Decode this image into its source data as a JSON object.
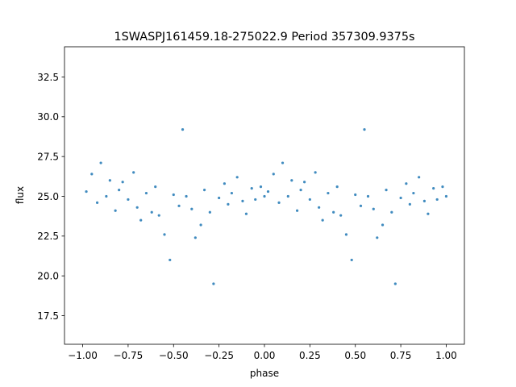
{
  "chart_data": {
    "type": "scatter",
    "title": "1SWASPJ161459.18-275022.9 Period 357309.9375s",
    "xlabel": "phase",
    "ylabel": "flux",
    "xlim": [
      -1.1,
      1.1
    ],
    "ylim": [
      15.7,
      34.4
    ],
    "xticks": [
      -1.0,
      -0.75,
      -0.5,
      -0.25,
      0.0,
      0.25,
      0.5,
      0.75,
      1.0
    ],
    "xtick_labels": [
      "−1.00",
      "−0.75",
      "−0.50",
      "−0.25",
      "0.00",
      "0.25",
      "0.50",
      "0.75",
      "1.00"
    ],
    "yticks": [
      17.5,
      20.0,
      22.5,
      25.0,
      27.5,
      30.0,
      32.5
    ],
    "ytick_labels": [
      "17.5",
      "20.0",
      "22.5",
      "25.0",
      "27.5",
      "30.0",
      "32.5"
    ],
    "grid": false,
    "legend": "none",
    "marker_color": "#1f77b4",
    "phase_folded": true,
    "series": [
      {
        "points": [
          [
            -0.98,
            25.3
          ],
          [
            -0.95,
            26.4
          ],
          [
            -0.92,
            24.6
          ],
          [
            -0.9,
            27.1
          ],
          [
            -0.87,
            25.0
          ],
          [
            -0.85,
            26.0
          ],
          [
            -0.82,
            24.1
          ],
          [
            -0.8,
            25.4
          ],
          [
            -0.78,
            25.9
          ],
          [
            -0.75,
            24.8
          ],
          [
            -0.72,
            26.5
          ],
          [
            -0.7,
            24.3
          ],
          [
            -0.68,
            23.5
          ],
          [
            -0.65,
            25.2
          ],
          [
            -0.62,
            24.0
          ],
          [
            -0.6,
            25.6
          ],
          [
            -0.58,
            23.8
          ],
          [
            -0.55,
            22.6
          ],
          [
            -0.52,
            21.0
          ],
          [
            -0.5,
            25.1
          ],
          [
            -0.47,
            24.4
          ],
          [
            -0.45,
            29.2
          ],
          [
            -0.43,
            25.0
          ],
          [
            -0.4,
            24.2
          ],
          [
            -0.38,
            22.4
          ],
          [
            -0.35,
            23.2
          ],
          [
            -0.33,
            25.4
          ],
          [
            -0.3,
            24.0
          ],
          [
            -0.28,
            19.5
          ],
          [
            -0.25,
            24.9
          ],
          [
            -0.22,
            25.8
          ],
          [
            -0.2,
            24.5
          ],
          [
            -0.18,
            25.2
          ],
          [
            -0.15,
            26.2
          ],
          [
            -0.12,
            24.7
          ],
          [
            -0.1,
            23.9
          ],
          [
            -0.07,
            25.5
          ],
          [
            -0.05,
            24.8
          ],
          [
            -0.02,
            25.6
          ],
          [
            0.0,
            25.0
          ],
          [
            0.02,
            25.3
          ],
          [
            0.05,
            26.4
          ],
          [
            0.08,
            24.6
          ],
          [
            0.1,
            27.1
          ],
          [
            0.13,
            25.0
          ],
          [
            0.15,
            26.0
          ],
          [
            0.18,
            24.1
          ],
          [
            0.2,
            25.4
          ],
          [
            0.22,
            25.9
          ],
          [
            0.25,
            24.8
          ],
          [
            0.28,
            26.5
          ],
          [
            0.3,
            24.3
          ],
          [
            0.32,
            23.5
          ],
          [
            0.35,
            25.2
          ],
          [
            0.38,
            24.0
          ],
          [
            0.4,
            25.6
          ],
          [
            0.42,
            23.8
          ],
          [
            0.45,
            22.6
          ],
          [
            0.48,
            21.0
          ],
          [
            0.5,
            25.1
          ],
          [
            0.53,
            24.4
          ],
          [
            0.55,
            29.2
          ],
          [
            0.57,
            25.0
          ],
          [
            0.6,
            24.2
          ],
          [
            0.62,
            22.4
          ],
          [
            0.65,
            23.2
          ],
          [
            0.67,
            25.4
          ],
          [
            0.7,
            24.0
          ],
          [
            0.72,
            19.5
          ],
          [
            0.75,
            24.9
          ],
          [
            0.78,
            25.8
          ],
          [
            0.8,
            24.5
          ],
          [
            0.82,
            25.2
          ],
          [
            0.85,
            26.2
          ],
          [
            0.88,
            24.7
          ],
          [
            0.9,
            23.9
          ],
          [
            0.93,
            25.5
          ],
          [
            0.95,
            24.8
          ],
          [
            0.98,
            25.6
          ],
          [
            1.0,
            25.0
          ]
        ]
      }
    ]
  }
}
